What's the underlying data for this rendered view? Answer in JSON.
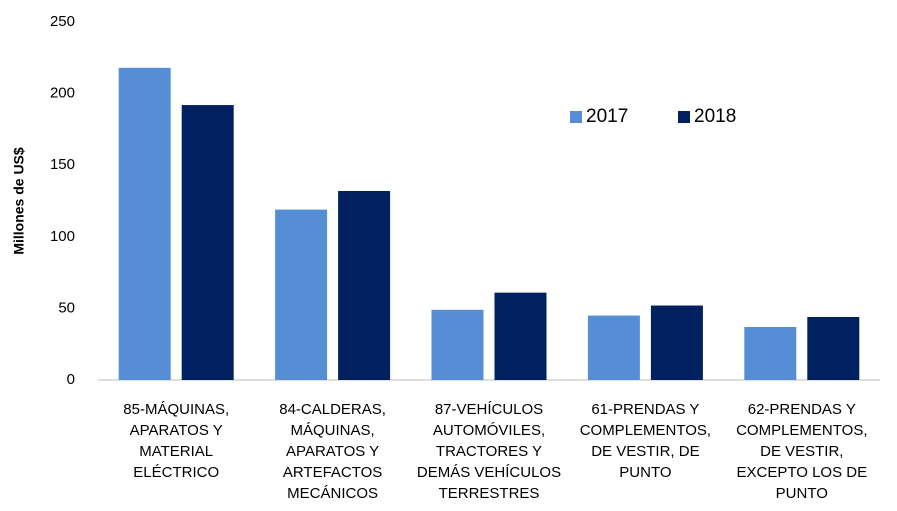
{
  "chart_data": {
    "type": "bar",
    "y_label": "Millones de US$",
    "categories": [
      "85-MÁQUINAS,\nAPARATOS Y\nMATERIAL\nELÉCTRICO",
      "84-CALDERAS,\nMÁQUINAS,\nAPARATOS Y\nARTEFACTOS\nMECÁNICOS",
      "87-VEHÍCULOS\nAUTOMÓVILES,\nTRACTORES Y\nDEMÁS VEHÍCULOS\nTERRESTRES",
      "61-PRENDAS Y\nCOMPLEMENTOS,\nDE VESTIR, DE\nPUNTO",
      "62-PRENDAS Y\nCOMPLEMENTOS,\nDE VESTIR,\nEXCEPTO LOS DE\nPUNTO"
    ],
    "series": [
      {
        "name": "2017",
        "color": "#558ed5",
        "values": [
          218,
          119,
          49,
          45,
          37
        ]
      },
      {
        "name": "2018",
        "color": "#002060",
        "values": [
          192,
          132,
          61,
          52,
          44
        ]
      }
    ],
    "ylim": [
      0,
      250
    ],
    "yticks": [
      0,
      50,
      100,
      150,
      200,
      250
    ],
    "grid": false,
    "legend": "upper right"
  }
}
